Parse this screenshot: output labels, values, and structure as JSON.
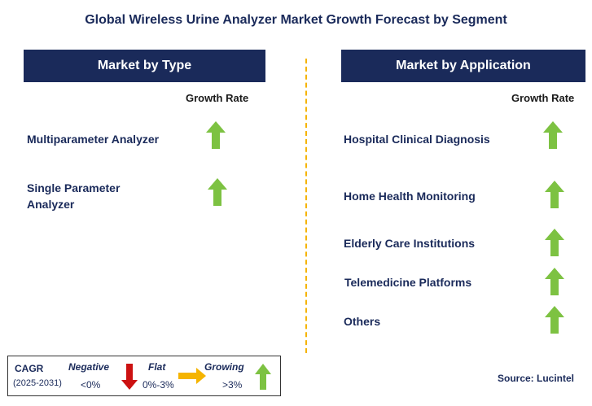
{
  "title": "Global Wireless Urine Analyzer Market Growth Forecast by Segment",
  "left_panel": {
    "header": "Market by Type",
    "growth_label": "Growth Rate",
    "items": [
      {
        "label": "Multiparameter Analyzer",
        "trend": "growing"
      },
      {
        "label_line1": "Single Parameter",
        "label_line2": "Analyzer",
        "trend": "growing"
      }
    ]
  },
  "right_panel": {
    "header": "Market by Application",
    "growth_label": "Growth Rate",
    "items": [
      {
        "label": "Hospital Clinical Diagnosis",
        "trend": "growing"
      },
      {
        "label": "Home Health Monitoring",
        "trend": "growing"
      },
      {
        "label": "Elderly Care Institutions",
        "trend": "growing"
      },
      {
        "label": "Telemedicine Platforms",
        "trend": "growing"
      },
      {
        "label": "Others",
        "trend": "growing"
      }
    ]
  },
  "legend": {
    "cagr_label": "CAGR",
    "period": "(2025-2031)",
    "negative_label": "Negative",
    "negative_range": "<0%",
    "flat_label": "Flat",
    "flat_range": "0%-3%",
    "growing_label": "Growing",
    "growing_range": ">3%"
  },
  "source": "Source: Lucintel",
  "colors": {
    "header_bg": "#1a2a5a",
    "growing": "#7dc242",
    "negative": "#cc1111",
    "flat": "#f5b400",
    "divider": "#f5b400"
  }
}
